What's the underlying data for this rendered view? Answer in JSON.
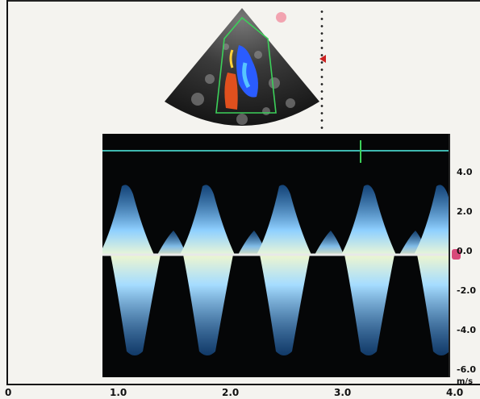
{
  "x_axis": {
    "ticks": [
      {
        "label": "0",
        "value": 0
      },
      {
        "label": "1.0",
        "value": 1
      },
      {
        "label": "2.0",
        "value": 2
      },
      {
        "label": "3.0",
        "value": 3
      },
      {
        "label": "4.0",
        "value": 4
      }
    ]
  },
  "y_axis": {
    "unit": "m/s",
    "ticks": [
      {
        "label": "4.0",
        "value": 4
      },
      {
        "label": "2.0",
        "value": 2
      },
      {
        "label": "0.0",
        "value": 0
      },
      {
        "label": "-2.0",
        "value": -2
      },
      {
        "label": "-4.0",
        "value": -4
      },
      {
        "label": "-6.0",
        "value": -6
      }
    ]
  },
  "colors": {
    "doppler_signal": "#7fc8ff",
    "baseline": "#e8e8e8",
    "scale_line": "#3fb8b0",
    "zero_marker": "#d84a7a",
    "flow_red": "#e0501e",
    "flow_blue": "#2a5cff"
  }
}
